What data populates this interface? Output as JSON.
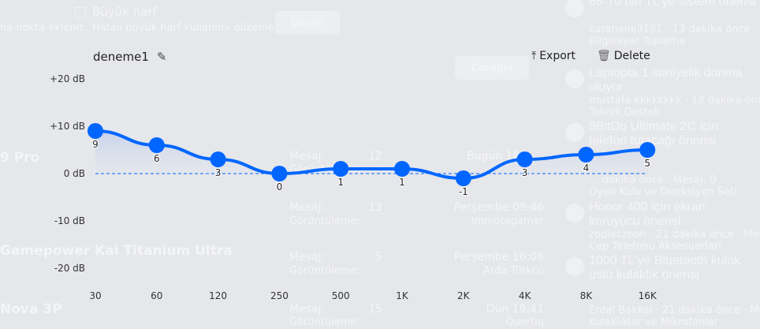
{
  "background": {
    "checkbox_label": "Büyük harf",
    "checkbox_desc": "Hatalı büyük harf kullanımı düzenlenir.",
    "left_desc": "na nokta eklenir.",
    "fix_button": "Düzelt",
    "reply_button": "Cevapla",
    "topics": [
      "9 Pro",
      "Gamepower Kai Titanium Ultra",
      "Nova 3P"
    ],
    "rows": [
      {
        "msg": "Mesaj:",
        "msg_val": "12",
        "date": "Bugün 18:...",
        "views": "Görüntüleme:"
      },
      {
        "msg": "Mesaj:",
        "msg_val": "13",
        "date": "Perşembe 09:46",
        "views": "Görüntüleme:",
        "user": "immotagamer"
      },
      {
        "msg": "Mesaj:",
        "msg_val": "5",
        "date": "Perşembe 16:08",
        "views": "Görüntüleme:",
        "user": "Arda Türkcü"
      },
      {
        "msg": "Mesaj:",
        "msg_val": "15",
        "date": "Dün 19:41",
        "views": "Görüntüleme:",
        "user": "Quertiq"
      }
    ],
    "feed": [
      {
        "title": "65-70 bin TL'ye sistem önerisi",
        "meta": "karahanlı3191 · 13 dakika önce · Mesaj",
        "cat": "Bilgisayar Toplama"
      },
      {
        "title": "Laptopta 1 saniyelik donma oluyor",
        "meta": "mustafa kkkkkkkk · 18 dakika önce · M",
        "cat": "Teknik Destek"
      },
      {
        "title": "8BitDo Ultimate 2C için telefon tutacağı önerisi",
        "meta": "... dakika önce · Mesaj: 0",
        "cat": "Oyun Kolu ve Direksiyon Seti"
      },
      {
        "title": "Honor 400 için ekran koruyucu önerisi",
        "meta": "zodiaczeon · 21 dakika önce · Mesaj: 5",
        "cat": "Cep Telefonu Aksesuarları"
      },
      {
        "title": "1000 TL'ye Bluetooth kulak üstü kulaklık önerisi",
        "meta": "Erdal Bakkal · 21 dakika önce · Mesaj:",
        "cat": "Kulaklıklar ve Mikrofonlar"
      }
    ]
  },
  "equalizer": {
    "preset_name": "deneme1",
    "export_label": "Export",
    "delete_label": "Delete",
    "accent": "#0066ff"
  },
  "chart_data": {
    "type": "line",
    "categories": [
      "30",
      "60",
      "120",
      "250",
      "500",
      "1K",
      "2K",
      "4K",
      "8K",
      "16K"
    ],
    "values": [
      9,
      6,
      3,
      0,
      1,
      1,
      -1,
      3,
      4,
      5
    ],
    "ylim": [
      -20,
      20
    ],
    "y_ticks": [
      "+20 dB",
      "+10 dB",
      "0 dB",
      "-10 dB",
      "-20 dB"
    ],
    "y_tick_values": [
      20,
      10,
      0,
      -10,
      -20
    ]
  }
}
